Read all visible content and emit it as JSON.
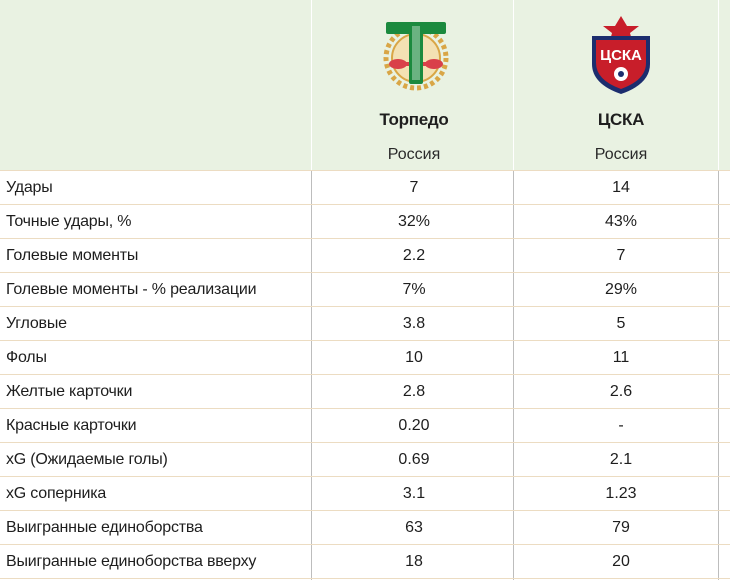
{
  "teams": [
    {
      "name": "Торпедо",
      "country": "Россия",
      "logo_icon": "torpedo-logo",
      "logo_color": "#1b8a3e"
    },
    {
      "name": "ЦСКА",
      "country": "Россия",
      "logo_icon": "cska-logo",
      "logo_color": "#c81e2a"
    }
  ],
  "logo_text": {
    "cska": "ЦСКА"
  },
  "colors": {
    "header_bg": "#e9f2e2",
    "row_border": "#ecdcc2"
  },
  "rows": [
    {
      "label": "Удары",
      "team1": "7",
      "team2": "14"
    },
    {
      "label": "Точные удары, %",
      "team1": "32%",
      "team2": "43%"
    },
    {
      "label": "Голевые моменты",
      "team1": "2.2",
      "team2": "7"
    },
    {
      "label": "Голевые моменты - % реализации",
      "team1": "7%",
      "team2": "29%"
    },
    {
      "label": "Угловые",
      "team1": "3.8",
      "team2": "5"
    },
    {
      "label": "Фолы",
      "team1": "10",
      "team2": "11"
    },
    {
      "label": "Желтые карточки",
      "team1": "2.8",
      "team2": "2.6"
    },
    {
      "label": "Красные карточки",
      "team1": "0.20",
      "team2": "-"
    },
    {
      "label": "xG (Ожидаемые голы)",
      "team1": "0.69",
      "team2": "2.1"
    },
    {
      "label": "xG соперника",
      "team1": "3.1",
      "team2": "1.23"
    },
    {
      "label": "Выигранные единоборства",
      "team1": "63",
      "team2": "79"
    },
    {
      "label": "Выигранные единоборства вверху",
      "team1": "18",
      "team2": "20"
    }
  ]
}
